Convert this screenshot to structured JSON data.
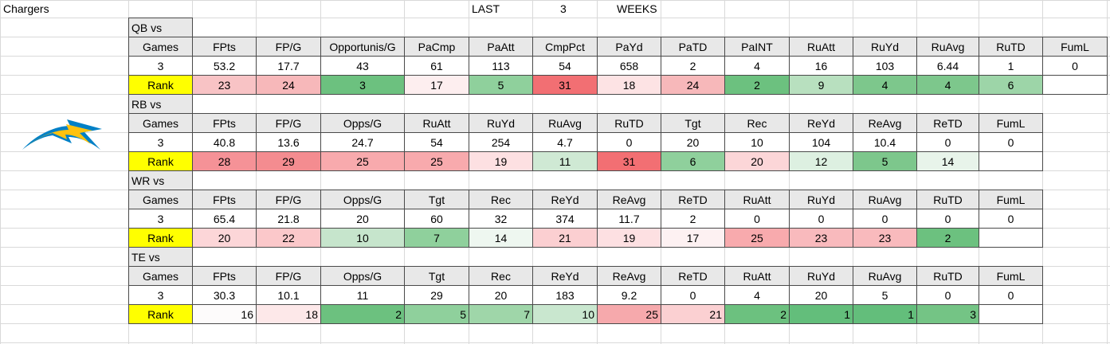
{
  "header": {
    "team": "Chargers",
    "last": "LAST",
    "weeks_count": 3,
    "weeks": "WEEKS"
  },
  "sections": [
    {
      "label": "QB vs",
      "headers": [
        "Games",
        "FPts",
        "FP/G",
        "Opportunis/G",
        "PaCmp",
        "PaAtt",
        "CmpPct",
        "PaYd",
        "PaTD",
        "PaINT",
        "RuAtt",
        "RuYd",
        "RuAvg",
        "RuTD",
        "FumL"
      ],
      "values": [
        3,
        53.2,
        17.7,
        43,
        61,
        113,
        54,
        658,
        2,
        4,
        16,
        103,
        6.44,
        1,
        0
      ],
      "rank_label": "Rank",
      "ranks": [
        23,
        24,
        3,
        17,
        5,
        31,
        18,
        24,
        2,
        9,
        4,
        4,
        6
      ],
      "rank_colors": [
        "#f8c3c5",
        "#f7b8ba",
        "#6cc17f",
        "#fdeeef",
        "#8fd09c",
        "#f26f73",
        "#fde3e4",
        "#f7b8ba",
        "#6cc17f",
        "#b8e0bf",
        "#7dc78c",
        "#7dc78c",
        "#9dd5a8"
      ]
    },
    {
      "label": "RB vs",
      "headers": [
        "Games",
        "FPts",
        "FP/G",
        "Opps/G",
        "RuAtt",
        "RuYd",
        "RuAvg",
        "RuTD",
        "Tgt",
        "Rec",
        "ReYd",
        "ReAvg",
        "ReTD",
        "FumL"
      ],
      "values": [
        3,
        40.8,
        13.6,
        24.7,
        54,
        254,
        4.7,
        0,
        20,
        10,
        104,
        10.4,
        0,
        0
      ],
      "rank_label": "Rank",
      "ranks": [
        28,
        29,
        25,
        25,
        19,
        11,
        31,
        6,
        20,
        12,
        5,
        14
      ],
      "rank_colors": [
        "#f59297",
        "#f48c90",
        "#f8aaad",
        "#f8aaad",
        "#fde0e2",
        "#cfe9d4",
        "#f26f73",
        "#8fd09c",
        "#fcd6d8",
        "#ddf0e1",
        "#7dc78c",
        "#e8f4ea"
      ]
    },
    {
      "label": "WR vs",
      "headers": [
        "Games",
        "FPts",
        "FP/G",
        "Opps/G",
        "Tgt",
        "Rec",
        "ReYd",
        "ReAvg",
        "ReTD",
        "RuAtt",
        "RuYd",
        "RuAvg",
        "RuTD",
        "FumL"
      ],
      "values": [
        3,
        65.4,
        21.8,
        20,
        60,
        32,
        374,
        11.7,
        2,
        0,
        0,
        0,
        0,
        0
      ],
      "rank_label": "Rank",
      "ranks": [
        20,
        22,
        10,
        7,
        14,
        21,
        19,
        17,
        25,
        23,
        23,
        2
      ],
      "rank_colors": [
        "#fcd6d8",
        "#fbc8ca",
        "#c6e5cc",
        "#8fd09c",
        "#eef7f0",
        "#fbcfd1",
        "#fde0e2",
        "#fdf1f2",
        "#f8aaad",
        "#f9babd",
        "#f9babd",
        "#6cc17f"
      ]
    },
    {
      "label": "TE vs",
      "headers": [
        "Games",
        "FPts",
        "FP/G",
        "Opps/G",
        "Tgt",
        "Rec",
        "ReYd",
        "ReAvg",
        "ReTD",
        "RuAtt",
        "RuYd",
        "RuAvg",
        "RuTD",
        "FumL"
      ],
      "values": [
        3,
        30.3,
        10.1,
        11,
        29,
        20,
        183,
        9.2,
        0,
        4,
        20,
        5,
        0,
        0
      ],
      "rank_label": "Rank",
      "ranks": [
        16,
        18,
        2,
        5,
        7,
        10,
        25,
        21,
        2,
        1,
        1,
        3
      ],
      "rank_colors": [
        "#fdfbfb",
        "#fde8e9",
        "#6cc17f",
        "#8fd09c",
        "#9fd6a9",
        "#c9e7cf",
        "#f6a9ac",
        "#fbd0d2",
        "#6cc17f",
        "#63be7b",
        "#63be7b",
        "#74c485"
      ],
      "rank_align": "right"
    }
  ]
}
